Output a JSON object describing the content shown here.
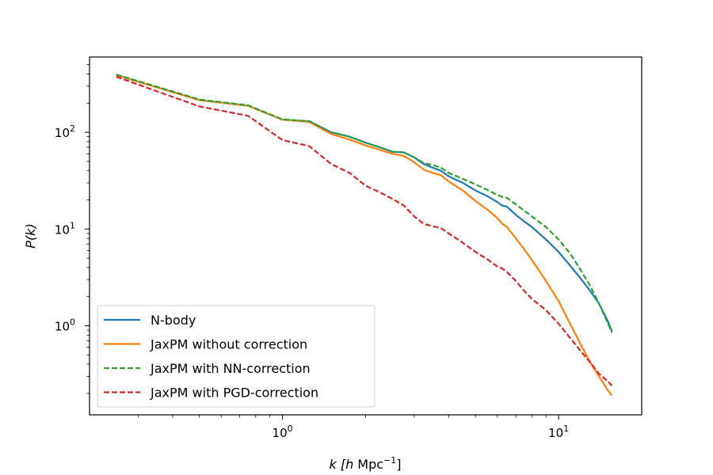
{
  "chart_data": {
    "type": "line",
    "xscale": "log",
    "yscale": "log",
    "xlim": [
      0.2,
      20
    ],
    "ylim": [
      0.12,
      600
    ],
    "xlabel": {
      "pre": "k [",
      "h": "h",
      "mid": " Mpc",
      "sup": "−1",
      "post": "]"
    },
    "ylabel": "P(k)",
    "grid": false,
    "legend_position": "lower-left",
    "x_ticks": [
      {
        "value": 1,
        "base": "10",
        "exp": "0"
      },
      {
        "value": 10,
        "base": "10",
        "exp": "1"
      }
    ],
    "y_ticks": [
      {
        "value": 1,
        "base": "10",
        "exp": "0"
      },
      {
        "value": 10,
        "base": "10",
        "exp": "1"
      },
      {
        "value": 100,
        "base": "10",
        "exp": "2"
      }
    ],
    "series": [
      {
        "name": "N-body",
        "color": "#1f77b4",
        "style": "solid",
        "x": [
          0.25,
          0.5,
          0.75,
          1.0,
          1.25,
          1.5,
          1.75,
          2.0,
          2.25,
          2.5,
          2.75,
          3.0,
          3.25,
          3.5,
          3.75,
          4.0,
          4.5,
          5.0,
          5.5,
          6.0,
          6.25,
          6.5,
          7.0,
          7.5,
          8.0,
          9.0,
          10.0,
          11.0,
          12.0,
          13.0,
          14.0,
          15.0,
          15.6
        ],
        "y": [
          390,
          215,
          188,
          135,
          130,
          100,
          90,
          78,
          70,
          63,
          62,
          55,
          47,
          43,
          40,
          35,
          30,
          25,
          22,
          19,
          17.5,
          17,
          14,
          12,
          10.5,
          7.8,
          5.8,
          4.2,
          3.1,
          2.3,
          1.7,
          1.15,
          0.88
        ]
      },
      {
        "name": "JaxPM without correction",
        "color": "#ff7f0e",
        "style": "solid",
        "x": [
          0.25,
          0.5,
          0.75,
          1.0,
          1.25,
          1.5,
          1.75,
          2.0,
          2.25,
          2.5,
          2.75,
          3.0,
          3.25,
          3.5,
          3.75,
          4.0,
          4.5,
          5.0,
          5.5,
          6.0,
          6.25,
          6.5,
          7.0,
          7.5,
          8.0,
          9.0,
          10.0,
          11.0,
          12.0,
          13.0,
          14.0,
          15.0,
          15.6
        ],
        "y": [
          390,
          215,
          188,
          135,
          128,
          96,
          84,
          73,
          66,
          60,
          57,
          49,
          41,
          38,
          36,
          31,
          25,
          19.5,
          16,
          13,
          11.3,
          10.5,
          8,
          6.2,
          4.8,
          2.9,
          1.8,
          1.05,
          0.65,
          0.42,
          0.3,
          0.22,
          0.19
        ]
      },
      {
        "name": "JaxPM with NN-correction",
        "color": "#2ca02c",
        "style": "dashed",
        "x": [
          0.25,
          0.5,
          0.75,
          1.0,
          1.25,
          1.5,
          1.75,
          2.0,
          2.25,
          2.5,
          2.75,
          3.0,
          3.25,
          3.5,
          3.75,
          4.0,
          4.5,
          5.0,
          5.5,
          6.0,
          6.25,
          6.5,
          7.0,
          7.5,
          8.0,
          9.0,
          10.0,
          11.0,
          12.0,
          13.0,
          14.0,
          15.0,
          15.6
        ],
        "y": [
          395,
          218,
          190,
          136,
          130,
          100,
          90,
          78,
          70,
          63,
          62,
          55,
          48,
          46,
          43,
          38,
          33,
          29,
          25.5,
          22.5,
          21.5,
          21,
          18,
          15.5,
          13.5,
          10.5,
          7.8,
          5.6,
          3.8,
          2.6,
          1.7,
          1.1,
          0.85
        ]
      },
      {
        "name": "JaxPM with PGD-correction",
        "color": "#d62728",
        "style": "dashed",
        "x": [
          0.25,
          0.5,
          0.75,
          1.0,
          1.25,
          1.5,
          1.75,
          2.0,
          2.25,
          2.5,
          2.75,
          3.0,
          3.25,
          3.5,
          3.75,
          4.0,
          4.5,
          5.0,
          5.5,
          6.0,
          6.25,
          6.5,
          7.0,
          7.5,
          8.0,
          9.0,
          10.0,
          11.0,
          12.0,
          13.0,
          14.0,
          15.0,
          15.6
        ],
        "y": [
          375,
          185,
          148,
          83,
          72,
          47,
          38,
          28,
          24,
          20.5,
          17.5,
          13.5,
          11.3,
          10.7,
          10.2,
          9,
          7.2,
          5.8,
          4.9,
          4.1,
          3.9,
          3.6,
          2.9,
          2.3,
          1.9,
          1.45,
          1.05,
          0.75,
          0.55,
          0.42,
          0.32,
          0.27,
          0.24
        ]
      }
    ]
  }
}
